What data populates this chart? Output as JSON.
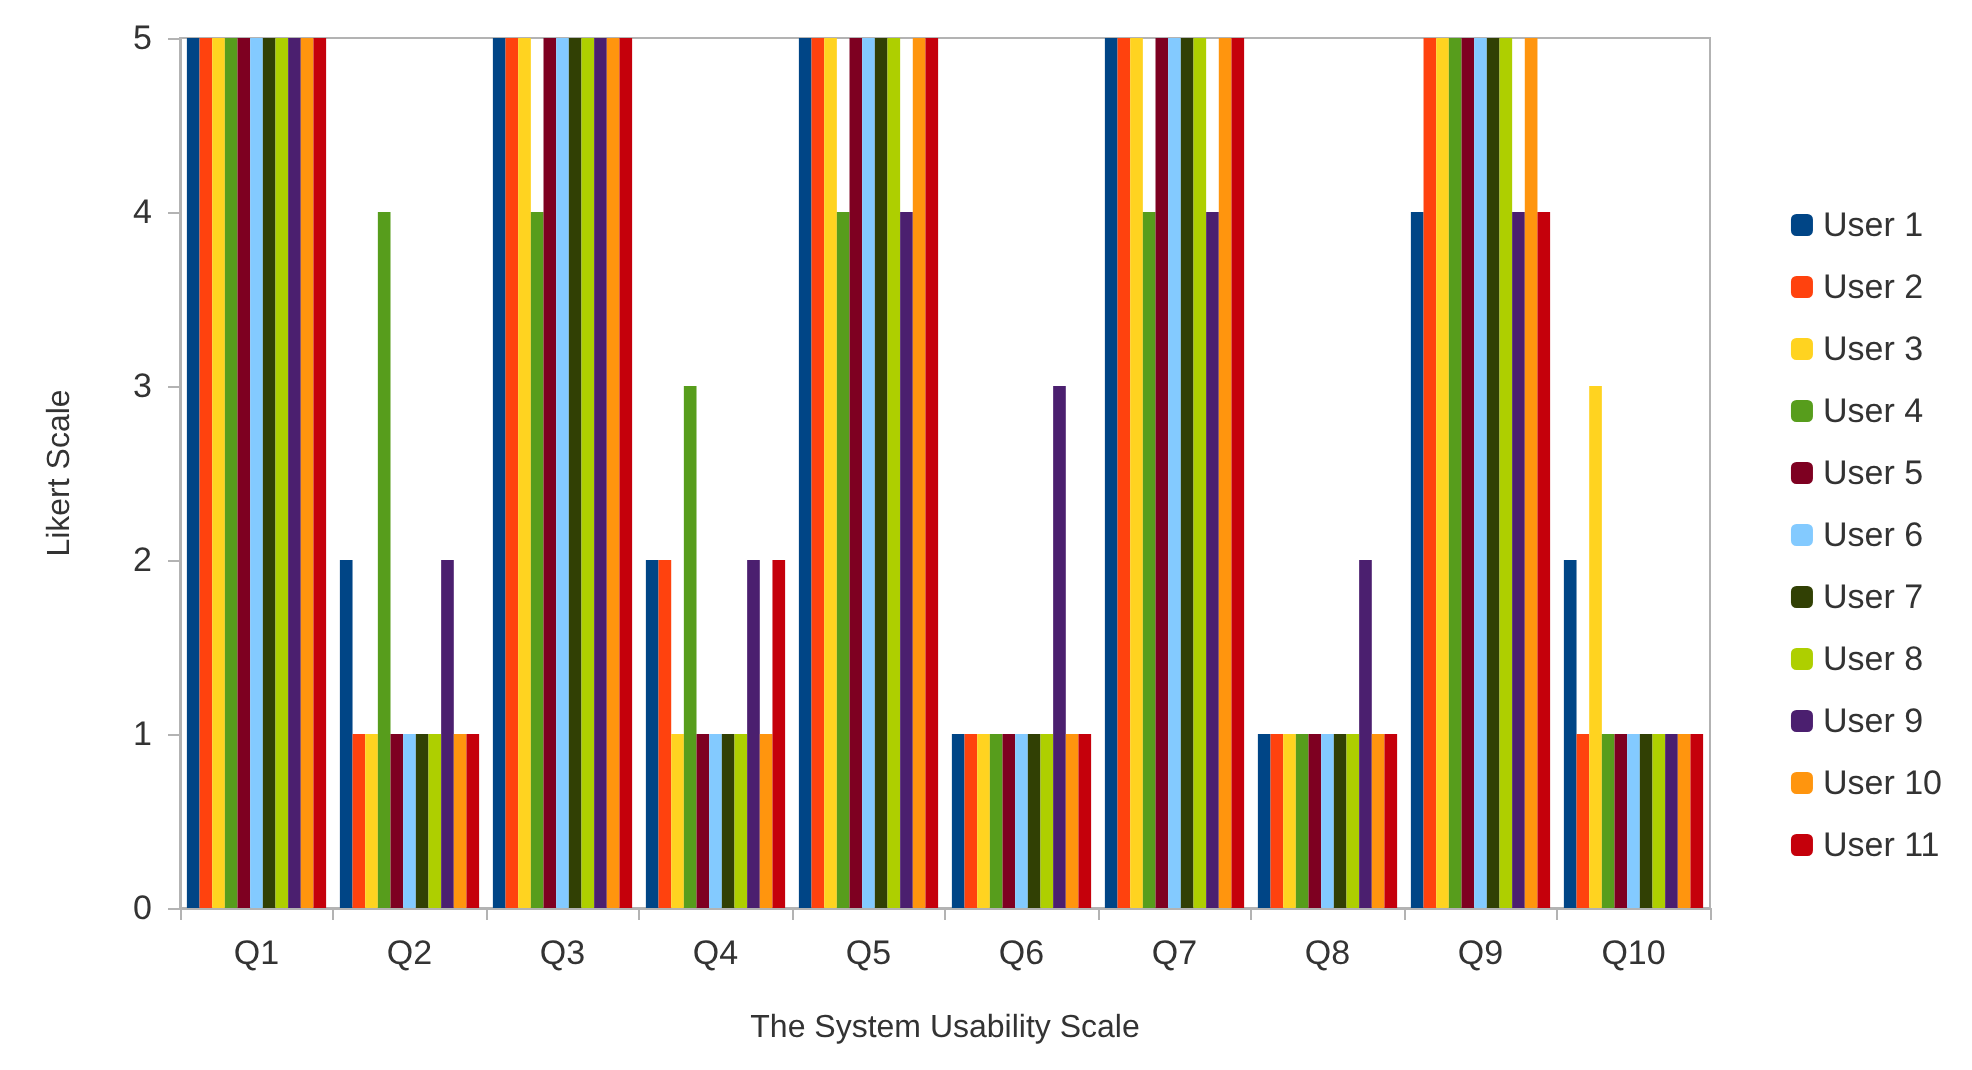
{
  "chart_data": {
    "type": "bar",
    "xlabel": "The System Usability Scale",
    "ylabel": "Likert Scale",
    "categories": [
      "Q1",
      "Q2",
      "Q3",
      "Q4",
      "Q5",
      "Q6",
      "Q7",
      "Q8",
      "Q9",
      "Q10"
    ],
    "series": [
      {
        "name": "User 1",
        "color": "#004586",
        "values": [
          5,
          2,
          5,
          2,
          5,
          1,
          5,
          1,
          4,
          2
        ]
      },
      {
        "name": "User 2",
        "color": "#ff420e",
        "values": [
          5,
          1,
          5,
          2,
          5,
          1,
          5,
          1,
          5,
          1
        ]
      },
      {
        "name": "User 3",
        "color": "#ffd320",
        "values": [
          5,
          1,
          5,
          1,
          5,
          1,
          5,
          1,
          5,
          3
        ]
      },
      {
        "name": "User 4",
        "color": "#579d1c",
        "values": [
          5,
          4,
          4,
          3,
          4,
          1,
          4,
          1,
          5,
          1
        ]
      },
      {
        "name": "User 5",
        "color": "#7e0021",
        "values": [
          5,
          1,
          5,
          1,
          5,
          1,
          5,
          1,
          5,
          1
        ]
      },
      {
        "name": "User 6",
        "color": "#83caff",
        "values": [
          5,
          1,
          5,
          1,
          5,
          1,
          5,
          1,
          5,
          1
        ]
      },
      {
        "name": "User 7",
        "color": "#314004",
        "values": [
          5,
          1,
          5,
          1,
          5,
          1,
          5,
          1,
          5,
          1
        ]
      },
      {
        "name": "User 8",
        "color": "#aecf00",
        "values": [
          5,
          1,
          5,
          1,
          5,
          1,
          5,
          1,
          5,
          1
        ]
      },
      {
        "name": "User 9",
        "color": "#4b1f6f",
        "values": [
          5,
          2,
          5,
          2,
          4,
          3,
          4,
          2,
          4,
          1
        ]
      },
      {
        "name": "User 10",
        "color": "#ff950e",
        "values": [
          5,
          1,
          5,
          1,
          5,
          1,
          5,
          1,
          5,
          1
        ]
      },
      {
        "name": "User 11",
        "color": "#c5000b",
        "values": [
          5,
          1,
          5,
          2,
          5,
          1,
          5,
          1,
          4,
          1
        ]
      }
    ],
    "ylim": [
      0,
      5
    ],
    "yticks": [
      0,
      1,
      2,
      3,
      4,
      5
    ],
    "grid": false,
    "legend": "right"
  }
}
